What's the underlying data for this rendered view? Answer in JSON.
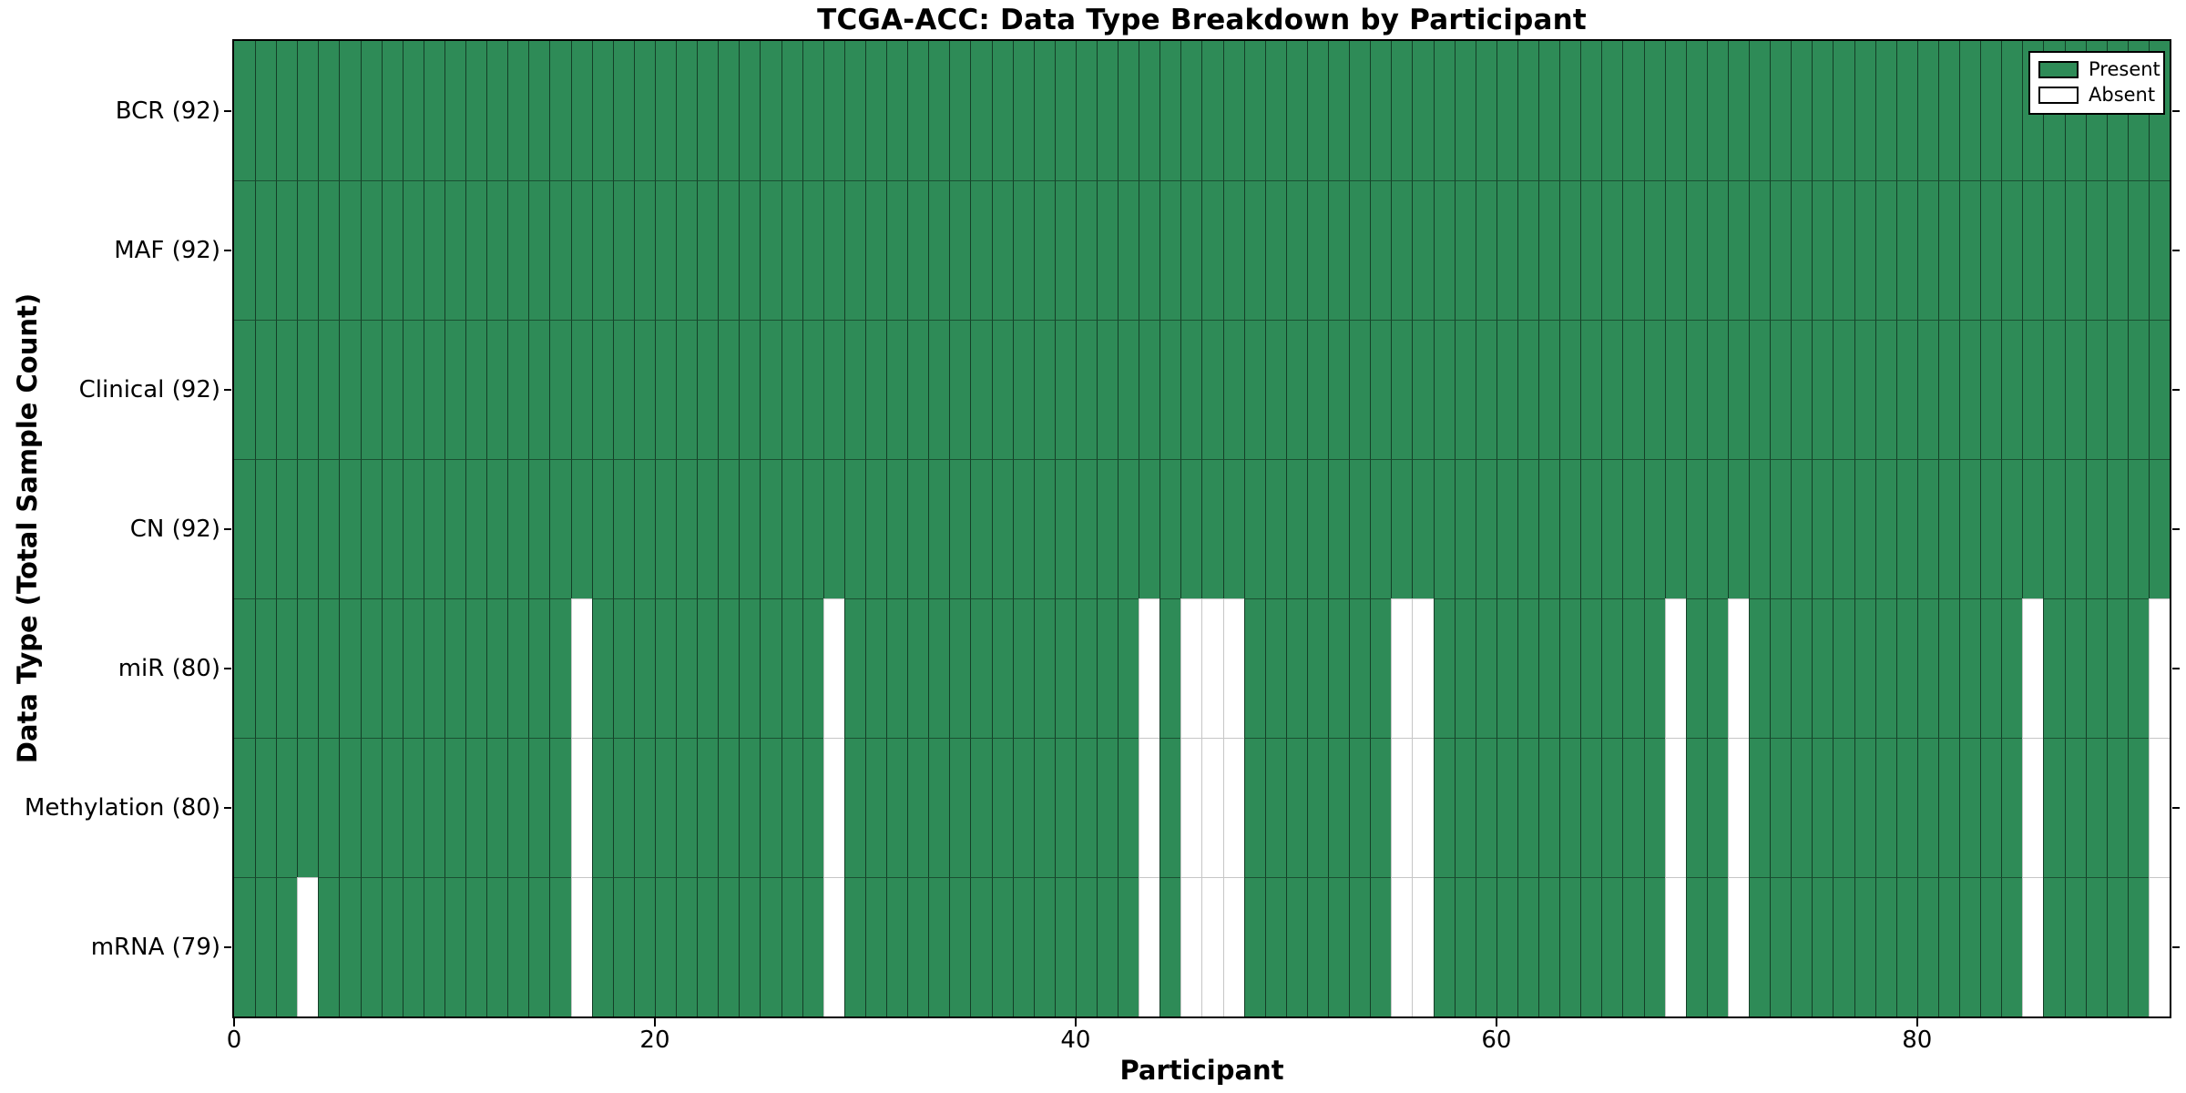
{
  "chart_data": {
    "type": "heatmap",
    "title": "TCGA-ACC: Data Type Breakdown by Participant",
    "xlabel": "Participant",
    "ylabel": "Data Type (Total Sample Count)",
    "n_participants": 92,
    "x_ticks": [
      0,
      20,
      40,
      60,
      80
    ],
    "x_range": [
      0,
      92
    ],
    "grid": false,
    "rows": [
      {
        "label": "BCR (92)",
        "data_type": "BCR",
        "present_count": 92,
        "absent_participants": []
      },
      {
        "label": "MAF (92)",
        "data_type": "MAF",
        "present_count": 92,
        "absent_participants": []
      },
      {
        "label": "Clinical (92)",
        "data_type": "Clinical",
        "present_count": 92,
        "absent_participants": []
      },
      {
        "label": "CN (92)",
        "data_type": "CN",
        "present_count": 92,
        "absent_participants": []
      },
      {
        "label": "miR (80)",
        "data_type": "miR",
        "present_count": 80,
        "absent_participants": [
          16,
          28,
          43,
          45,
          46,
          47,
          55,
          56,
          68,
          71,
          85,
          91
        ]
      },
      {
        "label": "Methylation (80)",
        "data_type": "Methylation",
        "present_count": 80,
        "absent_participants": [
          16,
          28,
          43,
          45,
          46,
          47,
          55,
          56,
          68,
          71,
          85,
          91
        ]
      },
      {
        "label": "mRNA (79)",
        "data_type": "mRNA",
        "present_count": 79,
        "absent_participants": [
          3,
          16,
          28,
          43,
          45,
          46,
          47,
          55,
          56,
          68,
          71,
          85,
          91
        ]
      }
    ],
    "legend": {
      "position": "upper right",
      "entries": [
        {
          "label": "Present",
          "color": "#2e8b57"
        },
        {
          "label": "Absent",
          "color": "#ffffff"
        }
      ]
    },
    "colors": {
      "present": "#2e8b57",
      "absent": "#ffffff",
      "edge": "#000000"
    }
  }
}
